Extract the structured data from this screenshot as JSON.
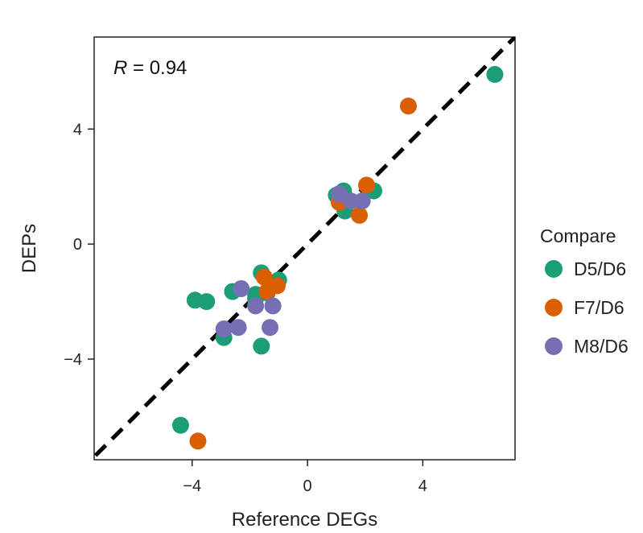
{
  "chart_data": {
    "type": "scatter",
    "xlabel": "Reference DEGs",
    "ylabel": "DEPs",
    "xlim": [
      -7.4,
      7.2
    ],
    "ylim": [
      -7.5,
      7.2
    ],
    "xticks": [
      -4,
      0,
      4
    ],
    "xtick_labels": [
      "−4",
      "0",
      "4"
    ],
    "yticks": [
      -4,
      0,
      4
    ],
    "ytick_labels": [
      "−4",
      "0",
      "4"
    ],
    "grid": false,
    "annotation": {
      "r_symbol": "R",
      "rest": " = 0.94"
    },
    "reference_line": {
      "style": "dashed",
      "slope": 1,
      "intercept": 0,
      "color": "#000000"
    },
    "legend": {
      "title": "Compare",
      "position": "right"
    },
    "series": [
      {
        "name": "D5/D6",
        "color": "#1b9e77",
        "points": [
          [
            6.5,
            5.9
          ],
          [
            1.25,
            1.85
          ],
          [
            1.3,
            1.15
          ],
          [
            2.3,
            1.85
          ],
          [
            1.0,
            1.7
          ],
          [
            -1.6,
            -1.0
          ],
          [
            -1.0,
            -1.25
          ],
          [
            -1.8,
            -1.75
          ],
          [
            -1.4,
            -1.7
          ],
          [
            -3.9,
            -1.95
          ],
          [
            -3.5,
            -2.0
          ],
          [
            -2.6,
            -1.65
          ],
          [
            -2.9,
            -3.25
          ],
          [
            -1.6,
            -3.55
          ],
          [
            -1.8,
            -1.9
          ],
          [
            -4.4,
            -6.3
          ]
        ]
      },
      {
        "name": "F7/D6",
        "color": "#d95f02",
        "points": [
          [
            3.5,
            4.8
          ],
          [
            2.05,
            2.05
          ],
          [
            1.8,
            1.0
          ],
          [
            1.1,
            1.45
          ],
          [
            -1.5,
            -1.15
          ],
          [
            -1.05,
            -1.45
          ],
          [
            -1.4,
            -1.65
          ],
          [
            -3.8,
            -6.85
          ]
        ]
      },
      {
        "name": "M8/D6",
        "color": "#7570b3",
        "points": [
          [
            1.1,
            1.75
          ],
          [
            1.5,
            1.5
          ],
          [
            1.9,
            1.5
          ],
          [
            -2.3,
            -1.55
          ],
          [
            -1.8,
            -2.15
          ],
          [
            -1.2,
            -2.15
          ],
          [
            -1.3,
            -2.9
          ],
          [
            -2.4,
            -2.9
          ],
          [
            -2.9,
            -2.95
          ]
        ]
      }
    ]
  }
}
